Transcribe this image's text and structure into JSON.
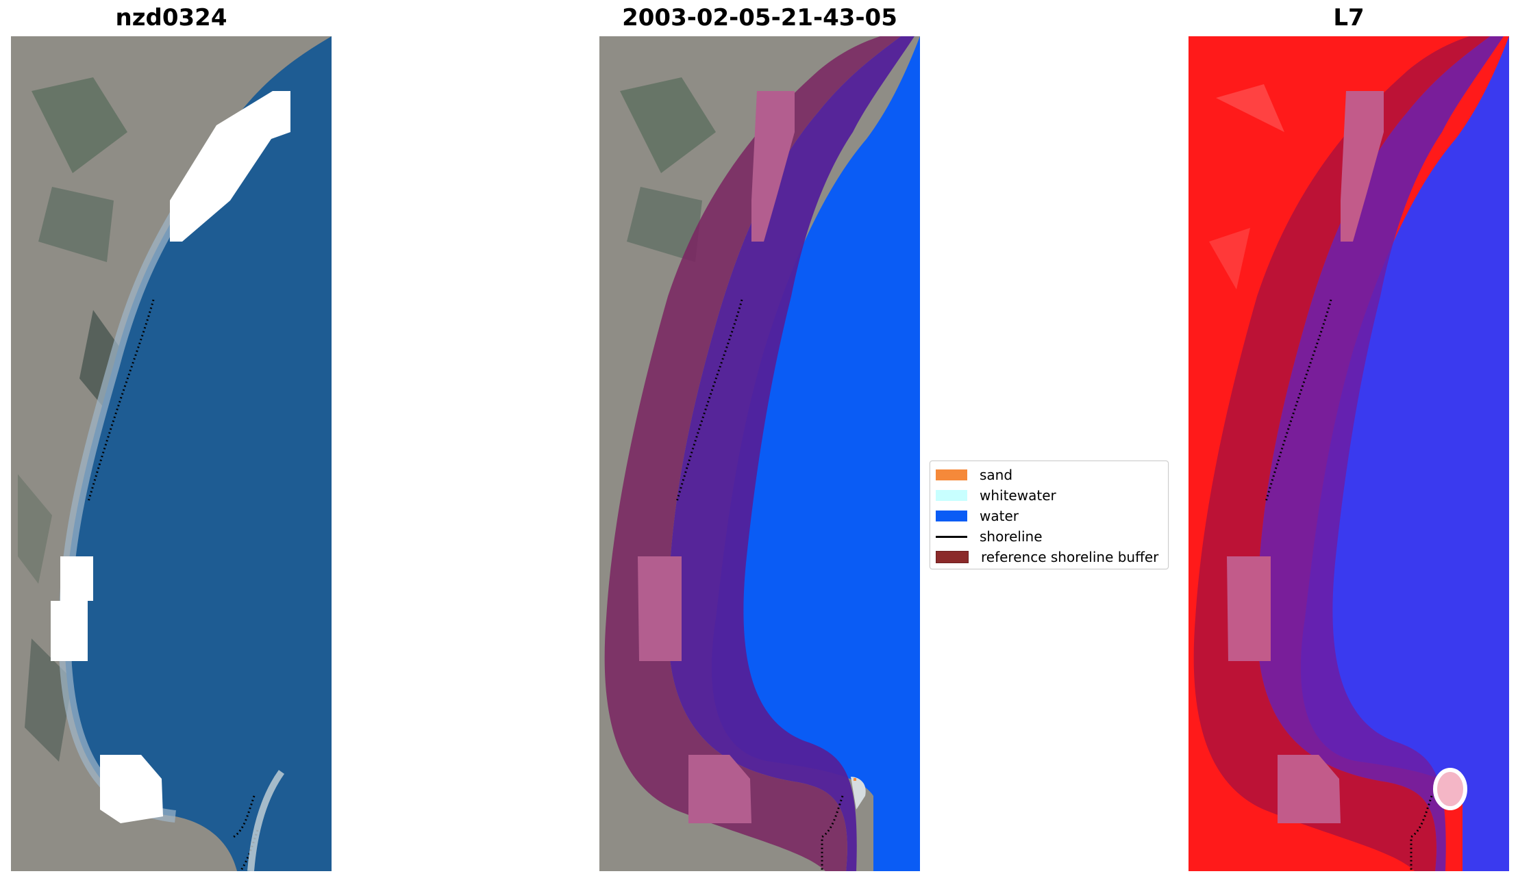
{
  "panels": [
    {
      "title": "nzd0324"
    },
    {
      "title": "2003-02-05-21-43-05"
    },
    {
      "title": "L7"
    }
  ],
  "legend": {
    "items": [
      {
        "label": "sand",
        "color": "#f5893a",
        "kind": "patch"
      },
      {
        "label": "whitewater",
        "color": "#c8ffff",
        "kind": "patch"
      },
      {
        "label": "water",
        "color": "#0a5cf5",
        "kind": "patch"
      },
      {
        "label": "shoreline",
        "color": "#000000",
        "kind": "line"
      },
      {
        "label": "reference shoreline buffer",
        "color": "#8b2a2a",
        "kind": "patch"
      }
    ]
  },
  "colors": {
    "land": "#8d8d86",
    "ocean": "#1e5c93",
    "water_class": "#0a5cf5",
    "buffer": "#7a2461",
    "buffer_inner": "#53209a",
    "mask": "#ffffff",
    "red_band": "#ff1a1a",
    "blue_band": "#3232ee"
  }
}
